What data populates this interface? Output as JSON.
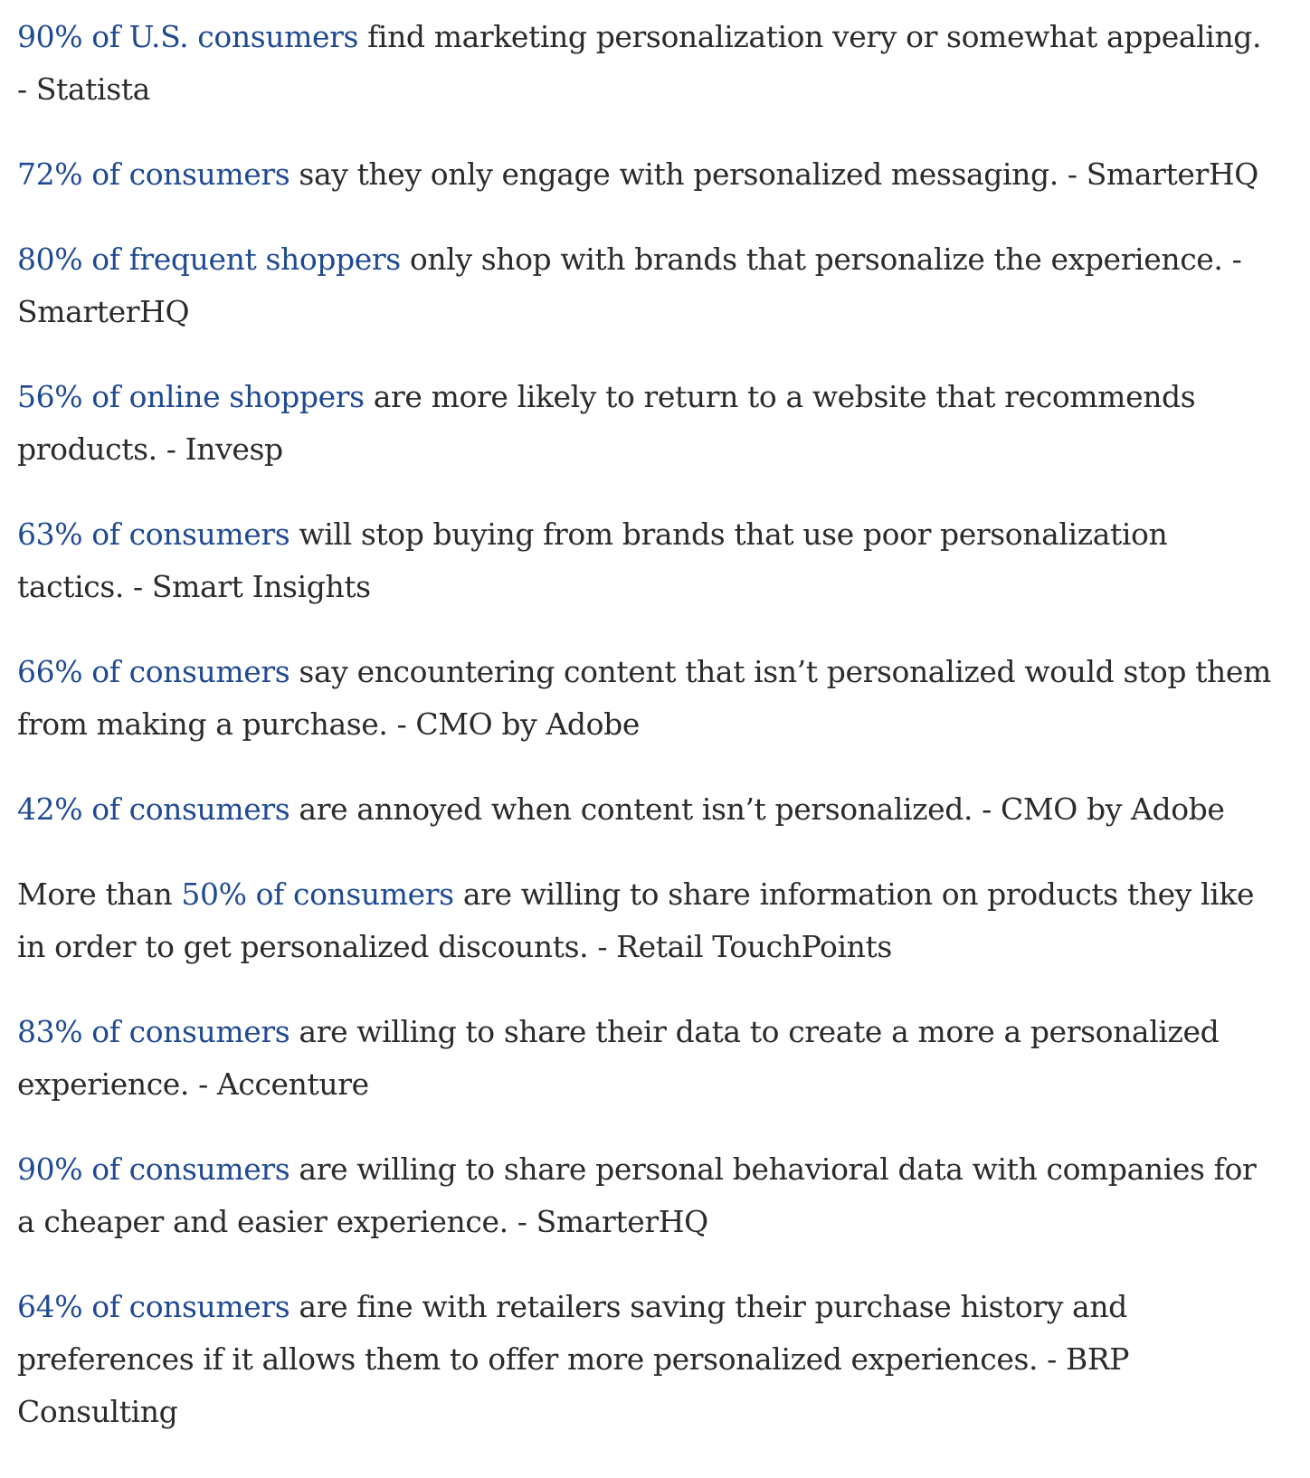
{
  "statistics": [
    {
      "prefix": "",
      "link": "90% of U.S. consumers",
      "text": " find marketing personalization very or somewhat appealing. - Statista"
    },
    {
      "prefix": "",
      "link": "72% of consumers",
      "text": " say they only engage with personalized messaging. - SmarterHQ"
    },
    {
      "prefix": "",
      "link": "80% of frequent shoppers",
      "text": " only shop with brands that personalize the experience. - SmarterHQ"
    },
    {
      "prefix": "",
      "link": "56% of online shoppers",
      "text": " are more likely to return to a website that recommends products. - Invesp"
    },
    {
      "prefix": "",
      "link": "63% of consumers",
      "text": " will stop buying from brands that use poor personalization tactics. - Smart Insights"
    },
    {
      "prefix": "",
      "link": "66% of consumers",
      "text": " say encountering content that isn’t personalized would stop them from making a purchase. - CMO by Adobe"
    },
    {
      "prefix": "",
      "link": "42% of consumers",
      "text": " are annoyed when content isn’t personalized. - CMO by Adobe"
    },
    {
      "prefix": "More than ",
      "link": "50% of consumers",
      "text": " are willing to share information on products they like in order to get personalized discounts. - Retail TouchPoints"
    },
    {
      "prefix": "",
      "link": "83% of consumers",
      "text": " are willing to share their data to create a more a personalized experience. - Accenture"
    },
    {
      "prefix": "",
      "link": "90% of consumers",
      "text": " are willing to share personal behavioral data with companies for a cheaper and easier experience. - SmarterHQ"
    },
    {
      "prefix": "",
      "link": "64% of consumers",
      "text": " are fine with retailers saving their purchase history and preferences if it allows them to offer more personalized experiences. - BRP Consulting"
    }
  ],
  "colors": {
    "link": "#1f4a93",
    "body_text": "#2b2b2b",
    "background": "#ffffff"
  }
}
